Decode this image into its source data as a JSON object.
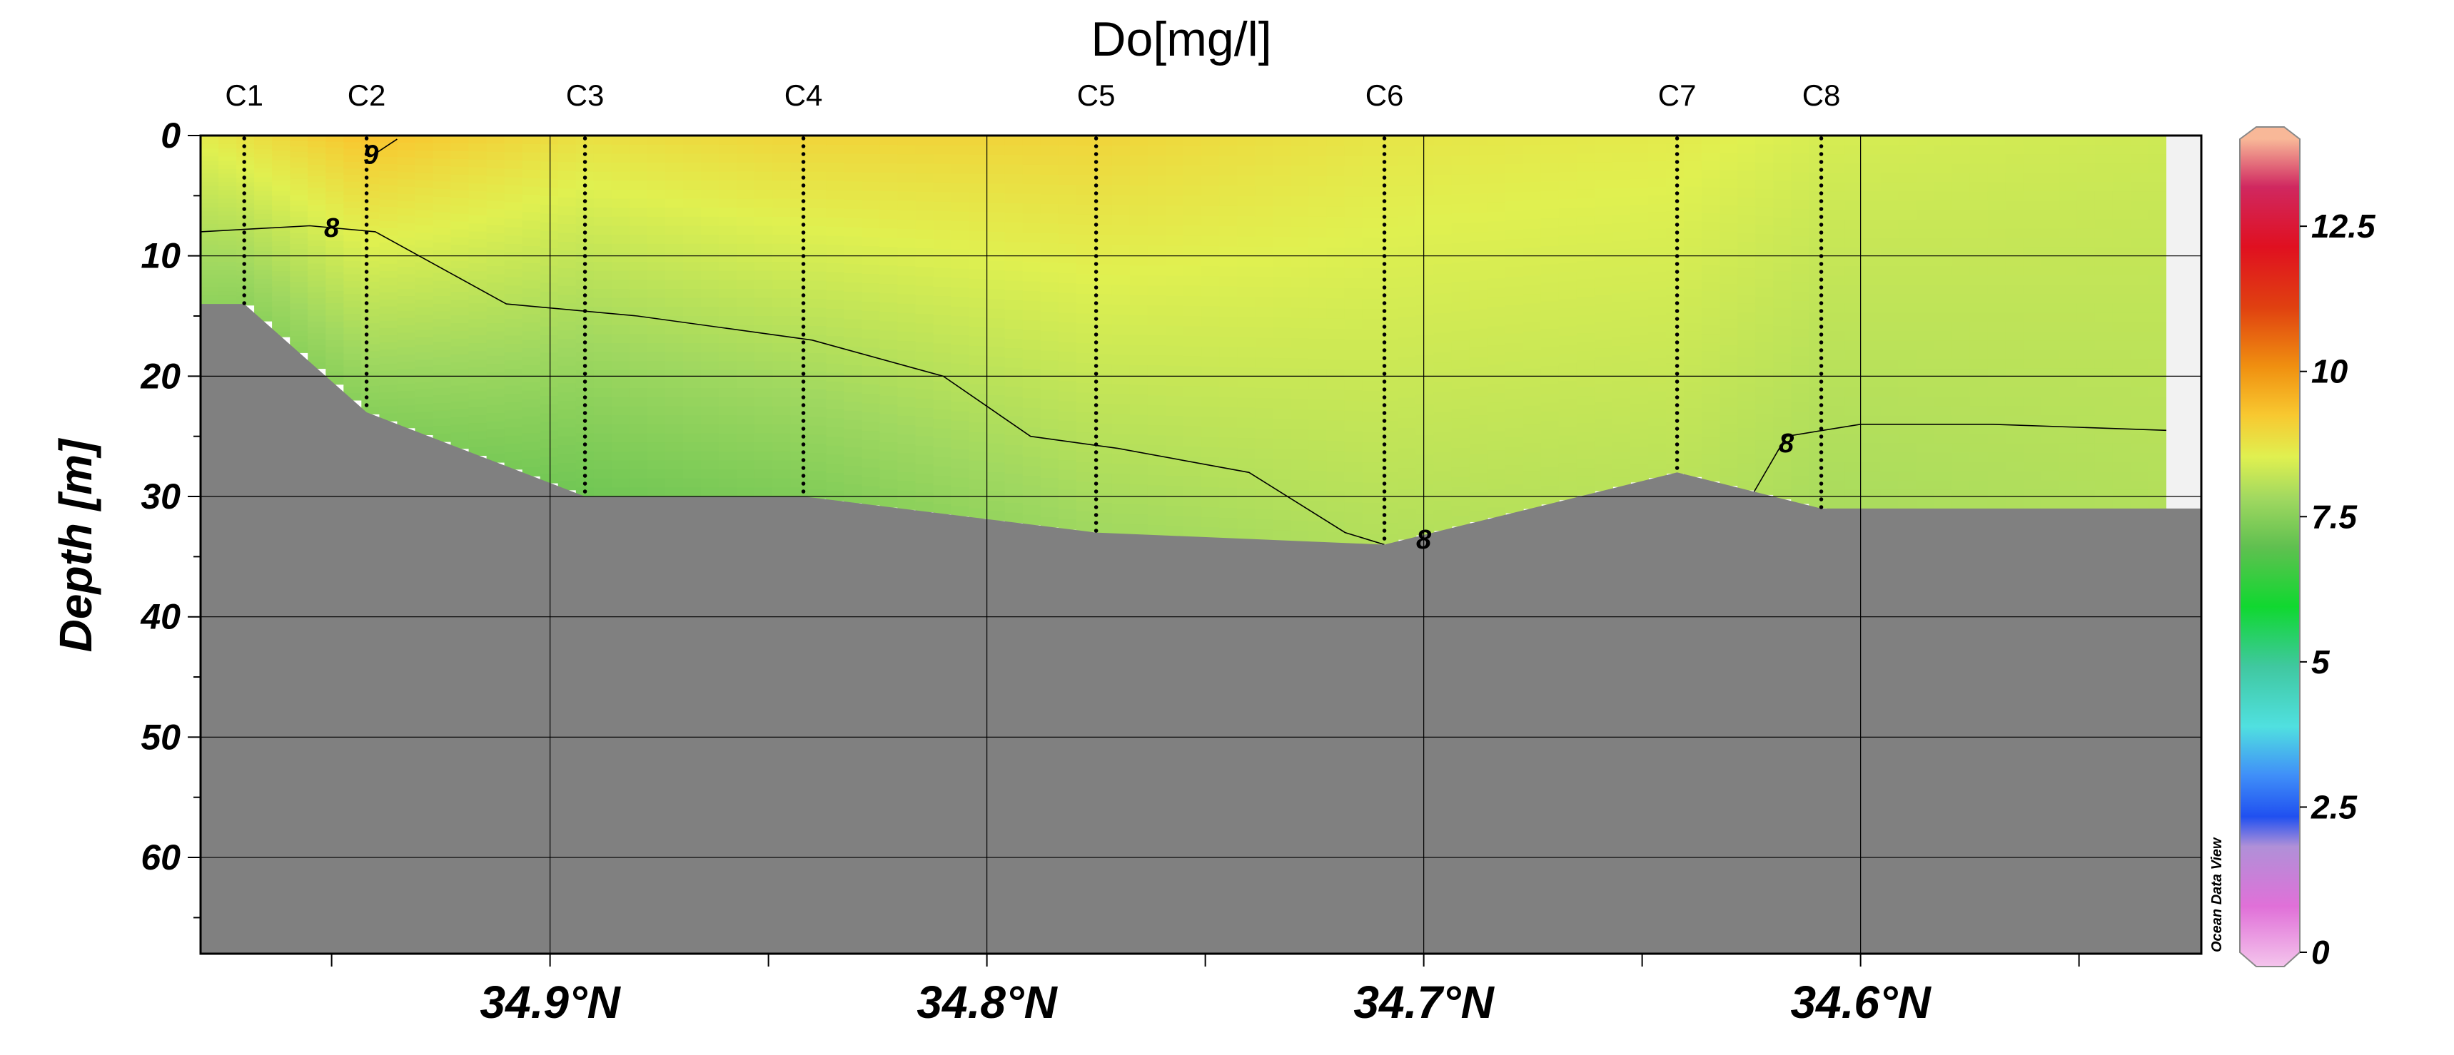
{
  "chart_data": {
    "type": "heatmap",
    "subtype": "section-contour",
    "title": "Do[mg/l]",
    "xlabel": "",
    "ylabel": "Depth [m]",
    "x_axis": {
      "quantity": "latitude °N",
      "direction": "decreasing",
      "range": [
        34.98,
        34.522
      ],
      "ticks": [
        34.9,
        34.8,
        34.7,
        34.6
      ],
      "tick_labels": [
        "34.9°N",
        "34.8°N",
        "34.7°N",
        "34.6°N"
      ]
    },
    "y_axis": {
      "range": [
        0,
        68
      ],
      "inverted": true,
      "ticks": [
        0,
        10,
        20,
        30,
        40,
        50,
        60
      ],
      "tick_labels": [
        "0",
        "10",
        "20",
        "30",
        "40",
        "50",
        "60"
      ]
    },
    "grid": true,
    "stations": [
      {
        "name": "C1",
        "lat": 34.97,
        "bottom_depth": 14
      },
      {
        "name": "C2",
        "lat": 34.942,
        "bottom_depth": 23
      },
      {
        "name": "C3",
        "lat": 34.892,
        "bottom_depth": 30
      },
      {
        "name": "C4",
        "lat": 34.842,
        "bottom_depth": 30
      },
      {
        "name": "C5",
        "lat": 34.775,
        "bottom_depth": 33
      },
      {
        "name": "C6",
        "lat": 34.709,
        "bottom_depth": 34
      },
      {
        "name": "C7",
        "lat": 34.642,
        "bottom_depth": 28
      },
      {
        "name": "C8",
        "lat": 34.609,
        "bottom_depth": 31
      }
    ],
    "bathymetry": [
      [
        34.98,
        14
      ],
      [
        34.97,
        14
      ],
      [
        34.942,
        23
      ],
      [
        34.892,
        30
      ],
      [
        34.842,
        30
      ],
      [
        34.775,
        33
      ],
      [
        34.709,
        34
      ],
      [
        34.642,
        28
      ],
      [
        34.609,
        31
      ],
      [
        34.522,
        31
      ]
    ],
    "surface_values": [
      [
        34.98,
        8.6
      ],
      [
        34.942,
        9.3
      ],
      [
        34.892,
        8.8
      ],
      [
        34.842,
        9.0
      ],
      [
        34.775,
        9.0
      ],
      [
        34.709,
        8.7
      ],
      [
        34.642,
        8.6
      ],
      [
        34.609,
        8.4
      ],
      [
        34.53,
        8.3
      ]
    ],
    "bottom_values": [
      [
        34.98,
        7.6
      ],
      [
        34.942,
        7.5
      ],
      [
        34.892,
        7.2
      ],
      [
        34.842,
        7.4
      ],
      [
        34.775,
        7.8
      ],
      [
        34.709,
        8.0
      ],
      [
        34.642,
        8.1
      ],
      [
        34.609,
        7.9
      ],
      [
        34.53,
        8.0
      ]
    ],
    "contours": [
      {
        "level": 8,
        "label": "8",
        "points": [
          [
            34.98,
            8
          ],
          [
            34.955,
            7.5
          ],
          [
            34.94,
            8
          ],
          [
            34.91,
            14
          ],
          [
            34.88,
            15
          ],
          [
            34.84,
            17
          ],
          [
            34.81,
            20
          ],
          [
            34.79,
            25
          ],
          [
            34.77,
            26
          ],
          [
            34.74,
            28
          ],
          [
            34.718,
            33
          ],
          [
            34.709,
            34
          ]
        ]
      },
      {
        "level": 8,
        "label": "8",
        "points": [
          [
            34.625,
            30
          ],
          [
            34.617,
            25
          ],
          [
            34.6,
            24
          ],
          [
            34.57,
            24
          ],
          [
            34.53,
            24.5
          ]
        ]
      },
      {
        "level": 9,
        "label": "9",
        "points": [
          [
            34.94,
            1.5
          ],
          [
            34.935,
            0.3
          ]
        ]
      }
    ],
    "colorbar": {
      "range": [
        0,
        14
      ],
      "ticks": [
        0,
        2.5,
        5,
        7.5,
        10,
        12.5
      ],
      "tick_labels": [
        "0",
        "2.5",
        "5",
        "7.5",
        "10",
        "12.5"
      ],
      "stops": [
        {
          "v": 0.0,
          "color": "#f4c4ec"
        },
        {
          "v": 1.0,
          "color": "#e070d8"
        },
        {
          "v": 2.0,
          "color": "#b090d8"
        },
        {
          "v": 2.5,
          "color": "#2050f0"
        },
        {
          "v": 3.2,
          "color": "#4090f8"
        },
        {
          "v": 4.0,
          "color": "#50e0e0"
        },
        {
          "v": 5.0,
          "color": "#40c8a0"
        },
        {
          "v": 6.0,
          "color": "#10d830"
        },
        {
          "v": 7.0,
          "color": "#60c050"
        },
        {
          "v": 7.8,
          "color": "#a0d860"
        },
        {
          "v": 8.5,
          "color": "#e0f050"
        },
        {
          "v": 9.2,
          "color": "#f8c830"
        },
        {
          "v": 10.0,
          "color": "#f09010"
        },
        {
          "v": 11.0,
          "color": "#e04010"
        },
        {
          "v": 12.0,
          "color": "#e01020"
        },
        {
          "v": 13.0,
          "color": "#d02860"
        },
        {
          "v": 13.8,
          "color": "#f8b898"
        }
      ]
    },
    "watermark": "Ocean Data View"
  }
}
